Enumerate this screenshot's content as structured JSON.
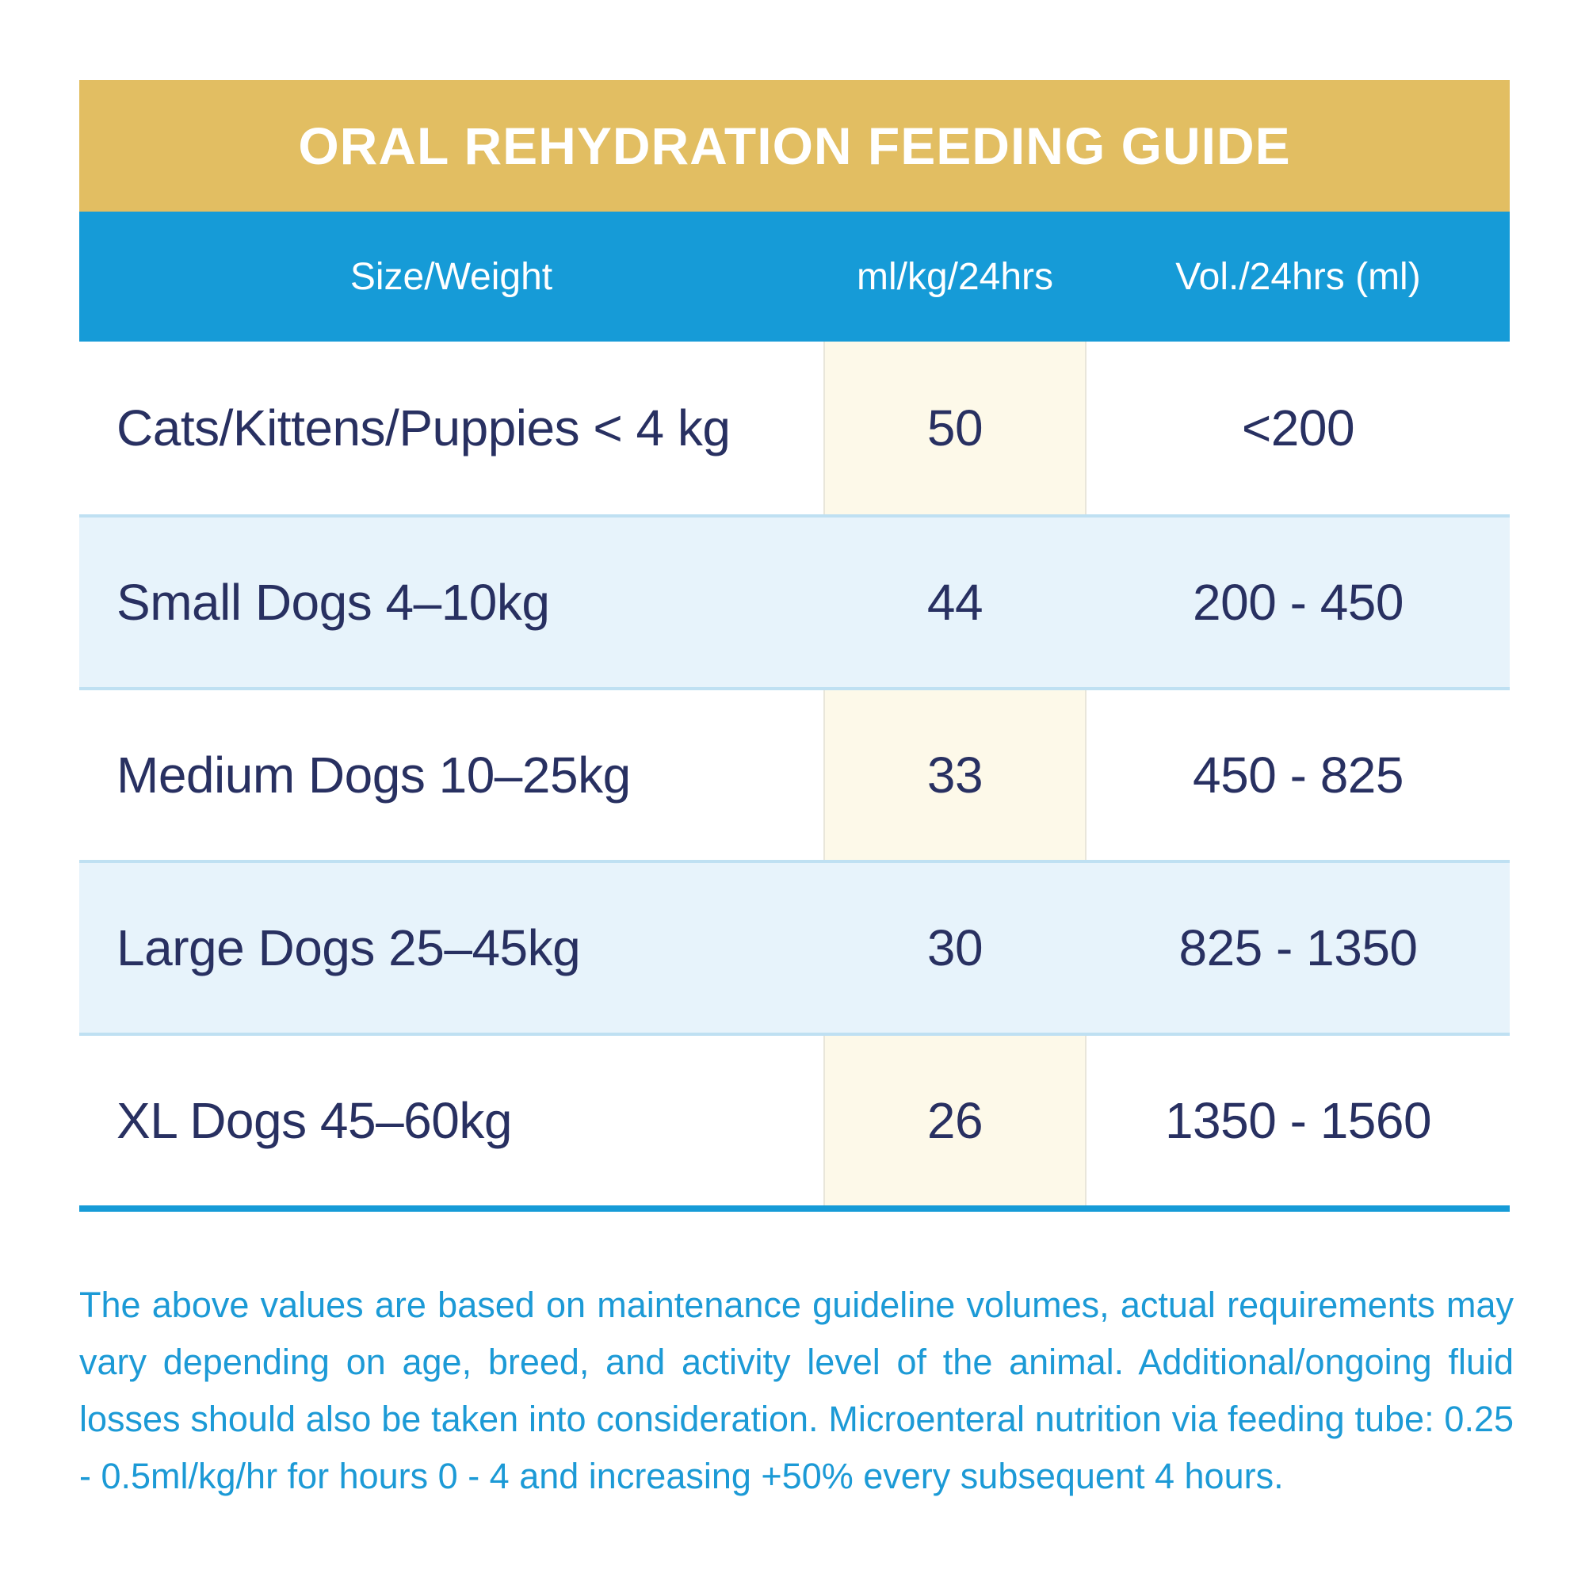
{
  "header": {
    "title": "ORAL REHYDRATION FEEDING GUIDE"
  },
  "table": {
    "columns": [
      {
        "label": "Size/Weight"
      },
      {
        "label": "ml/kg/24hrs"
      },
      {
        "label": "Vol./24hrs (ml)"
      }
    ],
    "rows": [
      {
        "size_weight": "Cats/Kittens/Puppies < 4 kg",
        "ml_kg_24hrs": "50",
        "vol_24hrs": "<200"
      },
      {
        "size_weight": "Small Dogs 4–10kg",
        "ml_kg_24hrs": "44",
        "vol_24hrs": "200 - 450"
      },
      {
        "size_weight": "Medium Dogs 10–25kg",
        "ml_kg_24hrs": "33",
        "vol_24hrs": "450 - 825"
      },
      {
        "size_weight": "Large Dogs 25–45kg",
        "ml_kg_24hrs": "30",
        "vol_24hrs": "825 - 1350"
      },
      {
        "size_weight": "XL Dogs 45–60kg",
        "ml_kg_24hrs": "26",
        "vol_24hrs": "1350 - 1560"
      }
    ]
  },
  "footnote": {
    "text": "The above values are based on maintenance guideline volumes, actual requirements may vary depending on age, breed, and activity level of the animal. Additional/ongoing fluid losses should also be taken into consideration. Microenteral nutrition via feeding tube: 0.25 - 0.5ml/kg/hr for hours 0 - 4 and increasing +50% every subsequent 4 hours."
  },
  "colors": {
    "gold_band": "#E2BE62",
    "header_blue": "#169BD7",
    "row_alt_blue": "#E7F3FB",
    "highlight_cream": "#FDF9E9",
    "highlight_border": "#E9E6DA",
    "row_separator": "#BFE0F2",
    "bottom_rule_blue": "#169BD7",
    "text_navy": "#283061",
    "footnote_blue": "#1C9AD6",
    "title_white": "#FFFFFF"
  }
}
